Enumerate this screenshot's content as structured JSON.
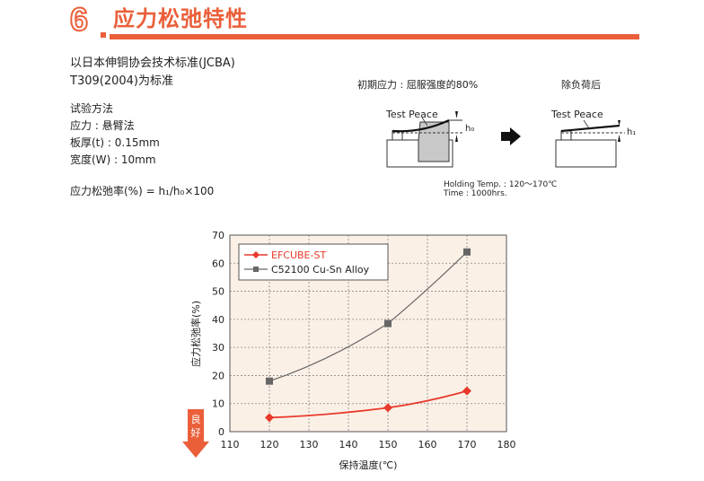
{
  "header": {
    "number": "6",
    "title": "应力松弛特性"
  },
  "description": {
    "line1": "以日本伸铜协会技术标准(JCBA)",
    "line2": "T309(2004)为标准",
    "method_title": "试验方法",
    "stress": "应力 : 悬臂法",
    "thickness": "板厚(t) : 0.15mm",
    "width": "宽度(W) : 10mm",
    "formula": "应力松弛率(%) = h₁/h₀×100"
  },
  "diagram": {
    "initial_label": "初期应力 : 屈服强度的80%",
    "after_label": "除负荷后",
    "test_piece_1": "Test Peace",
    "test_piece_2": "Test Peace",
    "h0": "h₀",
    "h1": "h₁",
    "conditions_1": "Holding Temp. : 120～170℃",
    "conditions_2": "Time : 1000hrs."
  },
  "chart_data": {
    "type": "line",
    "xlabel": "保持温度(℃)",
    "ylabel": "应力松弛率(%)",
    "xlim": [
      110,
      180
    ],
    "ylim": [
      0,
      70
    ],
    "xticks": [
      110,
      120,
      130,
      140,
      150,
      160,
      170,
      180
    ],
    "yticks": [
      0,
      10,
      20,
      30,
      40,
      50,
      60,
      70
    ],
    "grid": true,
    "legend_position": "top-left",
    "series": [
      {
        "name": "EFCUBE-ST",
        "color": "#e8392a",
        "marker": "diamond",
        "x": [
          120,
          150,
          170
        ],
        "y": [
          5,
          8.5,
          14.5
        ]
      },
      {
        "name": "C52100 Cu-Sn Alloy",
        "color": "#666666",
        "marker": "square",
        "x": [
          120,
          150,
          170
        ],
        "y": [
          18,
          38.5,
          64
        ]
      }
    ],
    "better_label": "良好"
  }
}
